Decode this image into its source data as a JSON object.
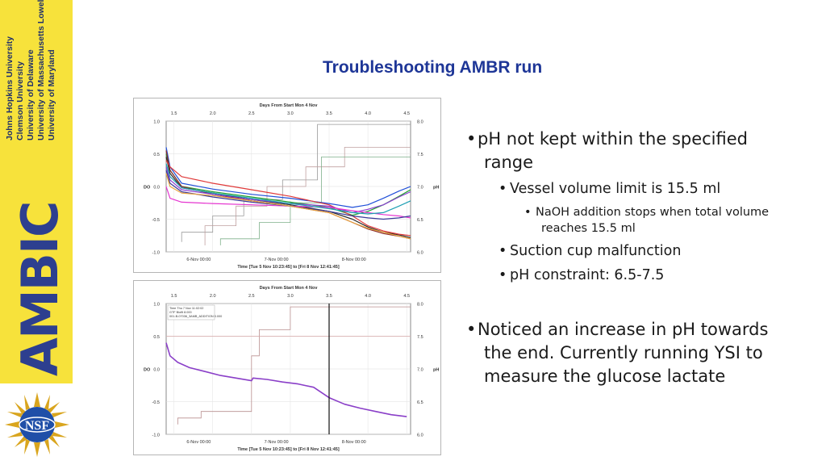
{
  "slide": {
    "title": "Troubleshooting AMBR run"
  },
  "sidebar": {
    "universities": [
      "Johns Hopkins University",
      "Clemson University",
      "University of Delaware",
      "University of Massachusetts Lowell",
      "University of Maryland"
    ],
    "logo_text": "AMBIC",
    "nsf_logo": "NSF"
  },
  "bullets": {
    "b1": "pH not kept within the specified",
    "b1_cont": "range",
    "b1_1": "Vessel volume limit is 15.5 ml",
    "b1_1_1": "NaOH addition stops when total volume",
    "b1_1_1_cont": "reaches 15.5 ml",
    "b1_2": "Suction cup malfunction",
    "b1_3": "pH constraint: 6.5-7.5",
    "b2": "Noticed an increase in pH towards",
    "b2_cont": "the end. Currently running YSI to",
    "b2_cont2": "measure the glucose lactate"
  },
  "colors": {
    "sidebar_bg": "#f7e23b",
    "title": "#1e3697",
    "logo": "#2d3f8f"
  },
  "chart_data": [
    {
      "type": "line",
      "top_axis_title": "Days From Start Mon 4 Nov",
      "top_ticks": [
        "1.5",
        "2.0",
        "2.5",
        "3.0",
        "3.5",
        "4.0",
        "4.5"
      ],
      "bottom_axis_title": "Time [Tue 5 Nov 10:23:45] to [Fri 8 Nov 12:41:45]",
      "bottom_ticks": [
        "6-Nov 00:00",
        "7-Nov 00:00",
        "8-Nov 00:00"
      ],
      "left_axis_label": "DO",
      "left_ticks": [
        "1.0",
        "0.5",
        "0.0",
        "-0.5",
        "-1.0"
      ],
      "right_axis_label": "pH",
      "right_ticks": [
        "8.0",
        "7.5",
        "7.0",
        "6.5",
        "6.0"
      ],
      "xlim": [
        1.4,
        4.55
      ],
      "ph_ylim": [
        6.0,
        8.0
      ],
      "series": [
        {
          "color": "#1f4fd8",
          "x": [
            1.4,
            1.45,
            1.6,
            2.0,
            2.5,
            3.0,
            3.5,
            3.8,
            4.0,
            4.2,
            4.4,
            4.55
          ],
          "y": [
            7.6,
            7.3,
            7.05,
            6.96,
            6.88,
            6.82,
            6.74,
            6.68,
            6.72,
            6.82,
            6.93,
            7.0
          ]
        },
        {
          "color": "#22a033",
          "x": [
            1.4,
            1.45,
            1.6,
            2.0,
            2.5,
            3.0,
            3.5,
            3.8,
            4.0,
            4.2,
            4.4,
            4.55
          ],
          "y": [
            7.5,
            7.25,
            7.0,
            6.92,
            6.84,
            6.76,
            6.68,
            6.56,
            6.62,
            6.72,
            6.85,
            6.95
          ]
        },
        {
          "color": "#8b2b2b",
          "x": [
            1.4,
            1.45,
            1.6,
            2.0,
            2.5,
            3.0,
            3.5,
            3.8,
            4.0,
            4.2,
            4.4,
            4.55
          ],
          "y": [
            7.55,
            7.25,
            7.0,
            6.88,
            6.78,
            6.7,
            6.6,
            6.45,
            6.35,
            6.28,
            6.24,
            6.2
          ]
        },
        {
          "color": "#2a2a2a",
          "x": [
            1.4,
            1.45,
            1.6,
            2.0,
            2.5,
            3.0,
            3.5,
            3.8,
            4.0,
            4.2,
            4.4,
            4.55
          ],
          "y": [
            7.45,
            7.2,
            6.98,
            6.9,
            6.8,
            6.72,
            6.62,
            6.5,
            6.38,
            6.3,
            6.26,
            6.22
          ]
        },
        {
          "color": "#e03a3a",
          "x": [
            1.4,
            1.45,
            1.6,
            2.0,
            2.5,
            3.0,
            3.5,
            3.8,
            4.0,
            4.2,
            4.4,
            4.55
          ],
          "y": [
            7.4,
            7.3,
            7.15,
            7.05,
            6.95,
            6.85,
            6.72,
            6.55,
            6.4,
            6.32,
            6.27,
            6.25
          ]
        },
        {
          "color": "#8a3fd1",
          "x": [
            1.4,
            1.45,
            1.6,
            2.0,
            2.5,
            3.0,
            3.5,
            3.8,
            4.0,
            4.2,
            4.4,
            4.55
          ],
          "y": [
            7.3,
            7.1,
            6.95,
            6.88,
            6.8,
            6.74,
            6.7,
            6.6,
            6.65,
            6.72,
            6.84,
            6.92
          ]
        },
        {
          "color": "#e535d0",
          "x": [
            1.4,
            1.45,
            1.6,
            2.0,
            2.5,
            3.0,
            3.5,
            3.8,
            4.0,
            4.2,
            4.4,
            4.55
          ],
          "y": [
            7.0,
            6.82,
            6.76,
            6.74,
            6.72,
            6.7,
            6.68,
            6.63,
            6.6,
            6.57,
            6.55,
            6.52
          ]
        },
        {
          "color": "#1ea0b4",
          "x": [
            1.4,
            1.45,
            1.6,
            2.0,
            2.5,
            3.0,
            3.5,
            3.8,
            4.0,
            4.2,
            4.4,
            4.55
          ],
          "y": [
            7.35,
            7.15,
            6.98,
            6.9,
            6.82,
            6.74,
            6.66,
            6.6,
            6.58,
            6.6,
            6.7,
            6.78
          ]
        },
        {
          "color": "#3a3a9a",
          "x": [
            1.4,
            1.45,
            1.6,
            2.0,
            2.5,
            3.0,
            3.5,
            3.8,
            4.0,
            4.2,
            4.4,
            4.55
          ],
          "y": [
            7.25,
            7.05,
            6.92,
            6.84,
            6.76,
            6.7,
            6.62,
            6.55,
            6.52,
            6.5,
            6.52,
            6.55
          ]
        },
        {
          "color": "#e9a23b",
          "x": [
            1.4,
            1.45,
            1.6,
            2.0,
            2.5,
            3.0,
            3.5,
            3.8,
            4.0,
            4.2,
            4.4,
            4.55
          ],
          "y": [
            7.2,
            7.0,
            6.9,
            6.86,
            6.78,
            6.7,
            6.6,
            6.45,
            6.36,
            6.3,
            6.24,
            6.2
          ]
        }
      ],
      "do_step_series": [
        {
          "color": "#9a9a9a",
          "x": [
            1.6,
            1.6,
            2.0,
            2.0,
            2.4,
            2.4,
            2.9,
            2.9,
            3.35,
            3.35,
            4.55
          ],
          "y": [
            -0.85,
            -0.7,
            -0.7,
            -0.45,
            -0.45,
            -0.2,
            -0.2,
            0.1,
            0.1,
            0.95,
            0.95
          ]
        },
        {
          "color": "#c0a0a0",
          "x": [
            1.9,
            1.9,
            2.3,
            2.3,
            2.7,
            2.7,
            3.2,
            3.2,
            3.7,
            3.7,
            4.55
          ],
          "y": [
            -0.9,
            -0.6,
            -0.6,
            -0.3,
            -0.3,
            0.0,
            0.0,
            0.3,
            0.3,
            0.6,
            0.6
          ]
        },
        {
          "color": "#7fb08a",
          "x": [
            2.1,
            2.1,
            2.6,
            2.6,
            3.0,
            3.0,
            3.4,
            3.4,
            4.55
          ],
          "y": [
            -0.9,
            -0.8,
            -0.8,
            -0.55,
            -0.55,
            -0.25,
            -0.25,
            0.45,
            0.45
          ]
        }
      ]
    },
    {
      "type": "line",
      "top_axis_title": "Days From Start Mon 4 Nov",
      "top_ticks": [
        "1.5",
        "2.0",
        "2.5",
        "3.0",
        "3.5",
        "4.0",
        "4.5"
      ],
      "bottom_axis_title": "Time [Tue 5 Nov 10:23:45] to [Fri 8 Nov 12:41:45]",
      "bottom_ticks": [
        "6-Nov 00:00",
        "7-Nov 00:00",
        "8-Nov 00:00"
      ],
      "left_axis_label": "DO",
      "left_ticks": [
        "1.0",
        "0.5",
        "0.0",
        "-0.5",
        "-1.0"
      ],
      "right_axis_label": "pH",
      "right_ticks": [
        "8.0",
        "7.5",
        "7.0",
        "6.5",
        "6.0"
      ],
      "xlim": [
        1.4,
        4.55
      ],
      "ph_ylim": [
        6.0,
        8.0
      ],
      "series": [
        {
          "color": "#8a3fc8",
          "x": [
            1.4,
            1.45,
            1.55,
            1.7,
            1.9,
            2.1,
            2.3,
            2.5,
            2.52,
            2.7,
            2.9,
            3.1,
            3.3,
            3.5,
            3.7,
            3.9,
            4.1,
            4.3,
            4.5
          ],
          "y": [
            7.4,
            7.2,
            7.1,
            7.02,
            6.96,
            6.9,
            6.86,
            6.82,
            6.86,
            6.84,
            6.8,
            6.77,
            6.72,
            6.56,
            6.46,
            6.4,
            6.35,
            6.3,
            6.27
          ]
        }
      ],
      "do_step_series": [
        {
          "color": "#b98f8f",
          "x": [
            1.55,
            1.55,
            1.85,
            1.85,
            2.5,
            2.5,
            2.6,
            2.6,
            3.0,
            3.0,
            4.55
          ],
          "y": [
            -0.85,
            -0.75,
            -0.75,
            -0.65,
            -0.65,
            0.2,
            0.2,
            0.6,
            0.6,
            0.95,
            0.95
          ]
        },
        {
          "color": "#d8a8a8",
          "x": [
            1.4,
            4.55
          ],
          "y": [
            0.5,
            0.5
          ]
        }
      ],
      "cursor_x": 3.5,
      "annotations": [
        "Time Thu 7 Nov 11:02:02",
        "GTF Bioflt 8.000",
        "001-B-07036_3AMB_ADDITION 0.000"
      ]
    }
  ]
}
